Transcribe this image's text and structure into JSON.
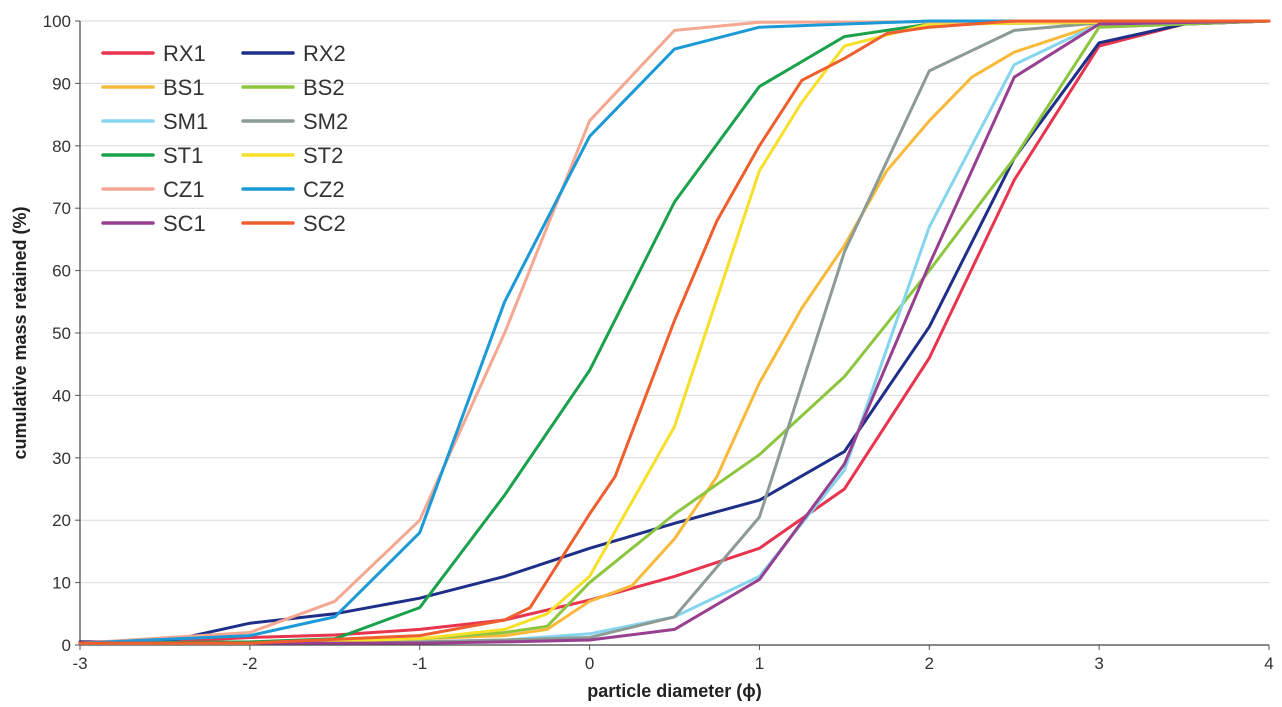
{
  "chart_data": {
    "type": "line",
    "title": "",
    "xlabel": "particle diameter (ϕ)",
    "ylabel": "cumulative mass retained (%)",
    "xlim": [
      -3,
      4
    ],
    "ylim": [
      0,
      100
    ],
    "x_ticks": [
      "-3",
      "-2",
      "-1",
      "0",
      "1",
      "2",
      "3",
      "4"
    ],
    "y_ticks": [
      "0",
      "10",
      "20",
      "30",
      "40",
      "50",
      "60",
      "70",
      "80",
      "90",
      "100"
    ],
    "grid": "horizontal",
    "legend_position": "top-left",
    "series": [
      {
        "name": "RX1",
        "color": "#e8344e",
        "points": [
          [
            -3,
            0.5
          ],
          [
            -2.5,
            0.5
          ],
          [
            -2,
            1.2
          ],
          [
            -1.5,
            1.6
          ],
          [
            -1,
            2.5
          ],
          [
            -0.5,
            4
          ],
          [
            0,
            7.2
          ],
          [
            0.5,
            11
          ],
          [
            1,
            15.5
          ],
          [
            1.5,
            25
          ],
          [
            2,
            46
          ],
          [
            2.5,
            74.5
          ],
          [
            3,
            96
          ],
          [
            3.5,
            99.5
          ],
          [
            4,
            100
          ]
        ]
      },
      {
        "name": "RX2",
        "color": "#1e2f8a",
        "points": [
          [
            -3,
            0.5
          ],
          [
            -2.5,
            0.5
          ],
          [
            -2,
            3.5
          ],
          [
            -1.5,
            5
          ],
          [
            -1,
            7.5
          ],
          [
            -0.5,
            11
          ],
          [
            0,
            15.5
          ],
          [
            0.5,
            19.5
          ],
          [
            1,
            23.2
          ],
          [
            1.5,
            31
          ],
          [
            2,
            51
          ],
          [
            2.5,
            78
          ],
          [
            3,
            96.5
          ],
          [
            3.5,
            99.5
          ],
          [
            4,
            100
          ]
        ]
      },
      {
        "name": "BS1",
        "color": "#f9b93a",
        "points": [
          [
            -3,
            0.3
          ],
          [
            -2,
            0.3
          ],
          [
            -1.5,
            0.5
          ],
          [
            -1,
            1
          ],
          [
            -0.5,
            1.5
          ],
          [
            -0.25,
            2.5
          ],
          [
            0,
            7
          ],
          [
            0.25,
            9.5
          ],
          [
            0.5,
            17
          ],
          [
            0.75,
            27
          ],
          [
            1,
            42
          ],
          [
            1.25,
            54
          ],
          [
            1.5,
            64
          ],
          [
            1.75,
            76
          ],
          [
            2,
            84
          ],
          [
            2.25,
            91
          ],
          [
            2.5,
            95
          ],
          [
            3,
            99.5
          ],
          [
            4,
            100
          ]
        ]
      },
      {
        "name": "BS2",
        "color": "#8cc63f",
        "points": [
          [
            -3,
            0.3
          ],
          [
            -2,
            0.3
          ],
          [
            -1.5,
            0.5
          ],
          [
            -1,
            1
          ],
          [
            -0.5,
            2
          ],
          [
            -0.25,
            3
          ],
          [
            0,
            10
          ],
          [
            0.5,
            21
          ],
          [
            1,
            30.5
          ],
          [
            1.5,
            43
          ],
          [
            2,
            60
          ],
          [
            2.5,
            78
          ],
          [
            3,
            99
          ],
          [
            4,
            100
          ]
        ]
      },
      {
        "name": "SM1",
        "color": "#86d5ee",
        "points": [
          [
            -3,
            0.3
          ],
          [
            -2,
            0.3
          ],
          [
            -1,
            0.5
          ],
          [
            -0.5,
            0.8
          ],
          [
            0,
            1.8
          ],
          [
            0.5,
            4.5
          ],
          [
            1,
            11
          ],
          [
            1.5,
            28
          ],
          [
            2,
            67
          ],
          [
            2.5,
            93
          ],
          [
            3,
            99.5
          ],
          [
            4,
            100
          ]
        ]
      },
      {
        "name": "SM2",
        "color": "#8c9b94",
        "points": [
          [
            -3,
            0.3
          ],
          [
            -2,
            0.3
          ],
          [
            -1,
            0.5
          ],
          [
            -0.5,
            0.8
          ],
          [
            0,
            1.2
          ],
          [
            0.5,
            4.5
          ],
          [
            1,
            20.5
          ],
          [
            1.5,
            63
          ],
          [
            2,
            92
          ],
          [
            2.5,
            98.5
          ],
          [
            3,
            99.7
          ],
          [
            4,
            100
          ]
        ]
      },
      {
        "name": "ST1",
        "color": "#1aa14b",
        "points": [
          [
            -3,
            0.3
          ],
          [
            -2,
            0.5
          ],
          [
            -1.5,
            1
          ],
          [
            -1,
            6
          ],
          [
            -0.5,
            24
          ],
          [
            0,
            44
          ],
          [
            0.5,
            71
          ],
          [
            1,
            89.5
          ],
          [
            1.5,
            97.5
          ],
          [
            2,
            99.5
          ],
          [
            4,
            100
          ]
        ]
      },
      {
        "name": "ST2",
        "color": "#f7e02a",
        "points": [
          [
            -3,
            0.3
          ],
          [
            -2,
            0.3
          ],
          [
            -1,
            1
          ],
          [
            -0.5,
            2.5
          ],
          [
            -0.25,
            5
          ],
          [
            0,
            11
          ],
          [
            0.5,
            35
          ],
          [
            1,
            76
          ],
          [
            1.25,
            87
          ],
          [
            1.5,
            96
          ],
          [
            2,
            99.5
          ],
          [
            4,
            100
          ]
        ]
      },
      {
        "name": "CZ1",
        "color": "#f4a892",
        "points": [
          [
            -3,
            0.3
          ],
          [
            -2,
            2
          ],
          [
            -1.5,
            7
          ],
          [
            -1,
            20
          ],
          [
            -0.5,
            50
          ],
          [
            0,
            84
          ],
          [
            0.5,
            98.5
          ],
          [
            1,
            99.8
          ],
          [
            4,
            100
          ]
        ]
      },
      {
        "name": "CZ2",
        "color": "#1b9ad7",
        "points": [
          [
            -3,
            0.3
          ],
          [
            -2,
            1.5
          ],
          [
            -1.5,
            4.5
          ],
          [
            -1,
            18
          ],
          [
            -0.5,
            55
          ],
          [
            0,
            81.5
          ],
          [
            0.5,
            95.5
          ],
          [
            1,
            99
          ],
          [
            2,
            100
          ],
          [
            4,
            100
          ]
        ]
      },
      {
        "name": "SC1",
        "color": "#97408f",
        "points": [
          [
            -3,
            0.3
          ],
          [
            -2,
            0.3
          ],
          [
            -1,
            0.3
          ],
          [
            -0.5,
            0.5
          ],
          [
            0,
            0.8
          ],
          [
            0.5,
            2.5
          ],
          [
            1,
            10.5
          ],
          [
            1.5,
            29
          ],
          [
            2,
            61
          ],
          [
            2.5,
            91
          ],
          [
            3,
            99.5
          ],
          [
            4,
            100
          ]
        ]
      },
      {
        "name": "SC2",
        "color": "#ef5f2e",
        "points": [
          [
            -3,
            0.3
          ],
          [
            -2,
            0.3
          ],
          [
            -1,
            1.5
          ],
          [
            -0.5,
            4
          ],
          [
            -0.35,
            6
          ],
          [
            0,
            21
          ],
          [
            0.15,
            27
          ],
          [
            0.5,
            52
          ],
          [
            0.75,
            68
          ],
          [
            1,
            80
          ],
          [
            1.25,
            90.5
          ],
          [
            1.5,
            94
          ],
          [
            1.75,
            98
          ],
          [
            2,
            99
          ],
          [
            2.5,
            100
          ],
          [
            4,
            100
          ]
        ]
      }
    ]
  }
}
